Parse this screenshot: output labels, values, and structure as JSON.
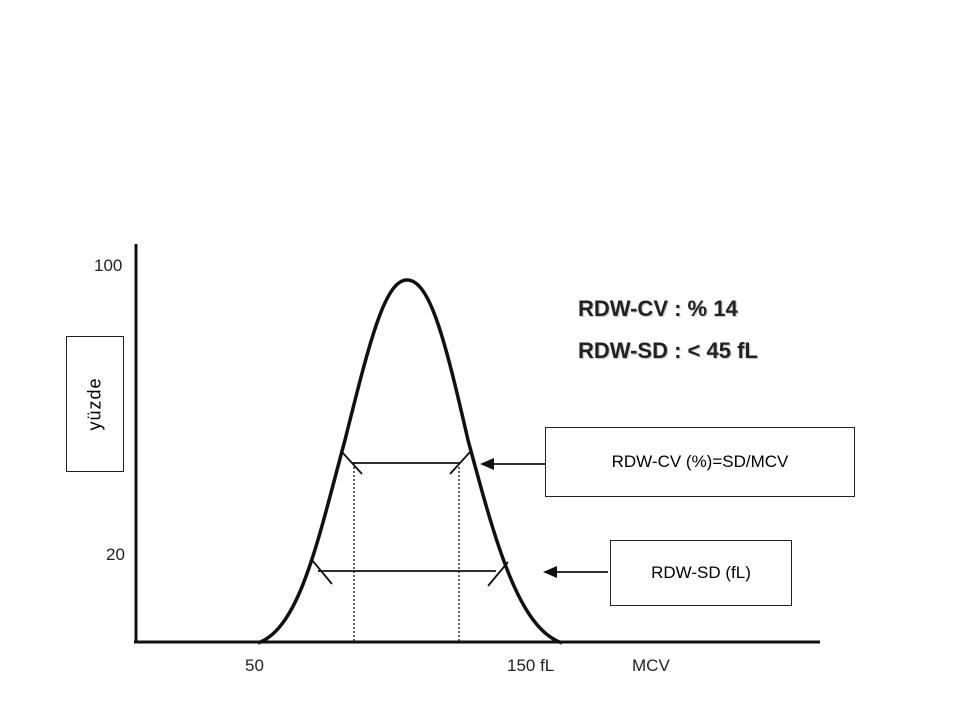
{
  "headline": {
    "cv": "RDW-CV : % 14",
    "sd": "RDW-SD : < 45 fL"
  },
  "y_axis": {
    "label": "yüzde",
    "tick_top": "100",
    "tick_low": "20"
  },
  "x_axis": {
    "tick_left": "50",
    "tick_right": "150  fL",
    "label": "MCV"
  },
  "annotations": {
    "cv_formula": "RDW-CV (%)=SD/MCV",
    "sd_unit": "RDW-SD  (fL)"
  },
  "colors": {
    "ink": "#111111",
    "headline": "#222222"
  }
}
